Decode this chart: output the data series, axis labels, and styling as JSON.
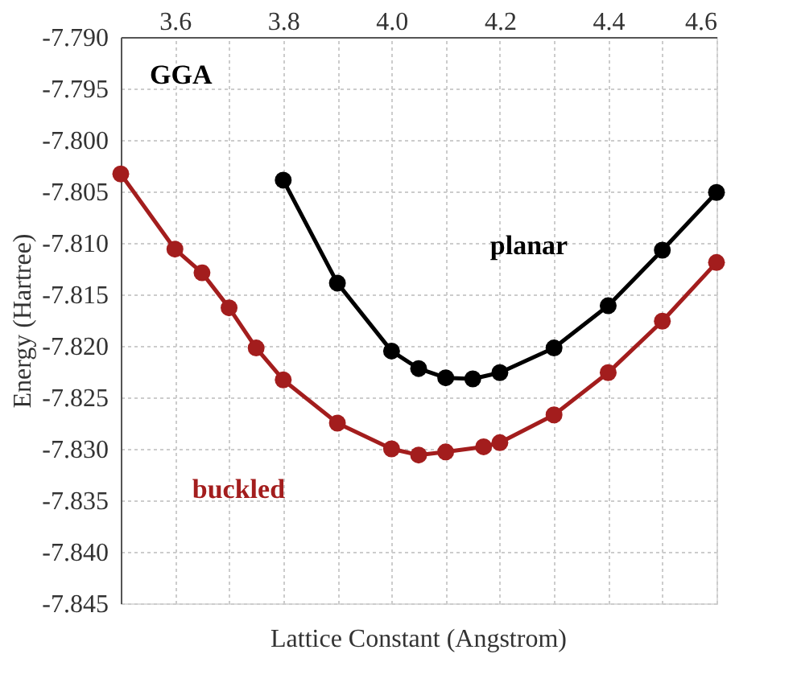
{
  "chart_data": {
    "type": "line",
    "xlabel": "Lattice Constant (Angstrom)",
    "ylabel": "Energy (Hartree)",
    "annotations": [
      "GGA"
    ],
    "xlim": [
      3.5,
      4.6
    ],
    "xticks": [
      {
        "value": 3.5,
        "label": null
      },
      3.6,
      {
        "value": 3.7,
        "label": null
      },
      3.8,
      {
        "value": 3.9,
        "label": null
      },
      {
        "value": 4.0,
        "label": "4.0"
      },
      {
        "value": 4.1,
        "label": null
      },
      4.2,
      {
        "value": 4.3,
        "label": null
      },
      4.4,
      {
        "value": 4.5,
        "label": null
      },
      4.6
    ],
    "ylim": [
      -7.845,
      -7.79
    ],
    "yticks": [
      -7.845,
      {
        "value": -7.84,
        "label": "-7.840"
      },
      -7.835,
      {
        "value": -7.83,
        "label": "-7.830"
      },
      -7.825,
      {
        "value": -7.82,
        "label": "-7.820"
      },
      -7.815,
      {
        "value": -7.81,
        "label": "-7.810"
      },
      -7.805,
      {
        "value": -7.8,
        "label": "-7.800"
      },
      -7.795,
      {
        "value": -7.79,
        "label": "-7.790"
      }
    ],
    "grid": true,
    "marker": "circle",
    "line_style": "solid",
    "series": [
      {
        "name": "planar",
        "color": "#000000",
        "x": [
          3.8,
          3.9,
          4.0,
          4.05,
          4.1,
          4.15,
          4.2,
          4.3,
          4.4,
          4.5,
          4.6
        ],
        "values": [
          -7.8039,
          -7.8139,
          -7.8205,
          -7.8222,
          -7.8231,
          -7.8232,
          -7.8226,
          -7.8202,
          -7.8161,
          -7.8107,
          -7.8051
        ]
      },
      {
        "name": "buckled",
        "color": "#a31d1d",
        "x": [
          3.5,
          3.6,
          3.65,
          3.7,
          3.75,
          3.8,
          3.9,
          4.0,
          4.05,
          4.1,
          4.17,
          4.2,
          4.3,
          4.4,
          4.5,
          4.6
        ],
        "values": [
          -7.8033,
          -7.8106,
          -7.8129,
          -7.8163,
          -7.8202,
          -7.8233,
          -7.8275,
          -7.83,
          -7.8306,
          -7.8303,
          -7.8298,
          -7.8294,
          -7.8267,
          -7.8226,
          -7.8176,
          -7.8119
        ]
      }
    ]
  }
}
